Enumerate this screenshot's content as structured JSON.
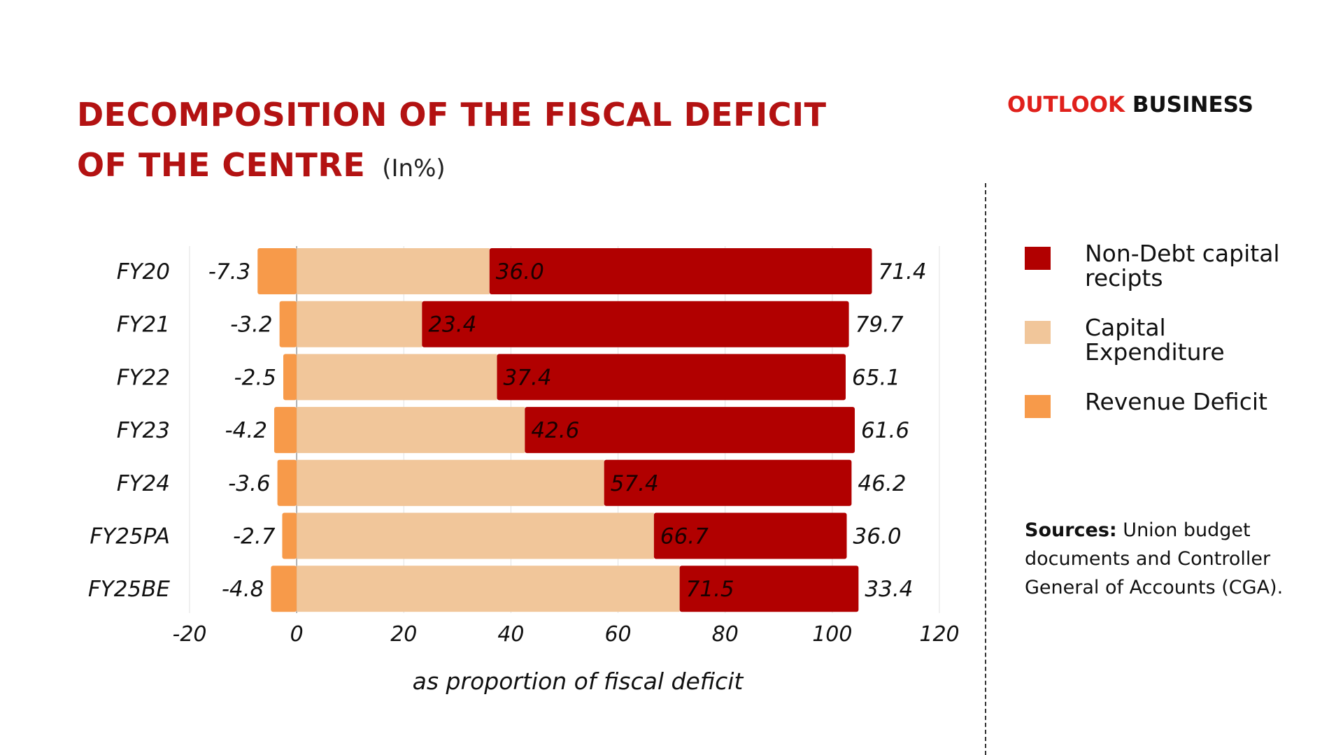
{
  "title": {
    "line1": "DECOMPOSITION OF THE FISCAL DEFICIT",
    "line2": "OF THE CENTRE",
    "unit": "(In%)"
  },
  "brand": {
    "part1": "OUTLOOK",
    "part2": " BUSINESS"
  },
  "legend": [
    {
      "label": "Non-Debt capital recipts",
      "color": "#b10000"
    },
    {
      "label": "Capital Expenditure",
      "color": "#f1c69a"
    },
    {
      "label": "Revenue Deficit",
      "color": "#f79a4a"
    }
  ],
  "sources": {
    "label": "Sources:",
    "text": " Union budget documents and Controller General of Accounts (CGA)."
  },
  "chart_data": {
    "type": "bar",
    "orientation": "horizontal",
    "stacked": true,
    "categories": [
      "FY20",
      "FY21",
      "FY22",
      "FY23",
      "FY24",
      "FY25PA",
      "FY25BE"
    ],
    "series": [
      {
        "name": "Revenue Deficit",
        "color": "#f79a4a",
        "values": [
          -7.3,
          -3.2,
          -2.5,
          -4.2,
          -3.6,
          -2.7,
          -4.8
        ]
      },
      {
        "name": "Capital Expenditure",
        "color": "#f1c69a",
        "values": [
          36.0,
          23.4,
          37.4,
          42.6,
          57.4,
          66.7,
          71.5
        ]
      },
      {
        "name": "Non-Debt capital recipts",
        "color": "#b10000",
        "values": [
          71.4,
          79.7,
          65.1,
          61.6,
          46.2,
          36.0,
          33.4
        ]
      }
    ],
    "neg_labels": [
      "-7.3",
      "-3.2",
      "-2.5",
      "-4.2",
      "-3.6",
      "-2.7",
      "-4.8"
    ],
    "mid_labels": [
      "36.0",
      "23.4",
      "37.4",
      "42.6",
      "57.4",
      "66.7",
      "71.5"
    ],
    "end_labels": [
      "71.4",
      "79.7",
      "65.1",
      "61.6",
      "46.2",
      "36.0",
      "33.4"
    ],
    "xlim": [
      -20,
      120
    ],
    "xticks": [
      "-20",
      "0",
      "20",
      "40",
      "60",
      "80",
      "100",
      "120"
    ],
    "xlabel": "as proportion of fiscal deficit",
    "grid": true,
    "legend_position": "right"
  }
}
